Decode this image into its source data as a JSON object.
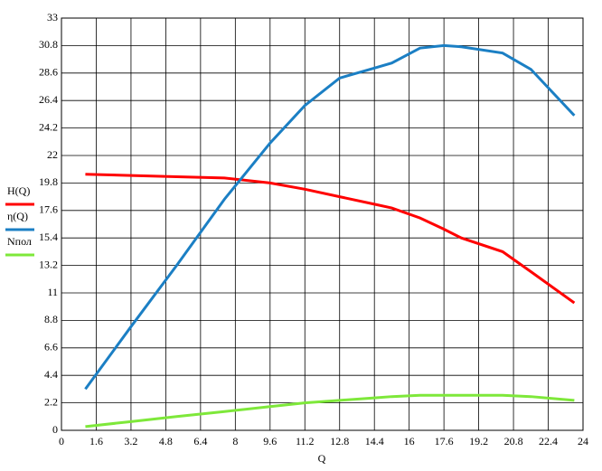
{
  "chart_data": {
    "type": "line",
    "x_label": "Q",
    "x": [
      1.1,
      3.2,
      5.3,
      7.5,
      9.6,
      11.2,
      12.8,
      14.4,
      15.2,
      16.5,
      17.6,
      18.4,
      20.3,
      21.6,
      23.6
    ],
    "series": [
      {
        "name": "H(Q)",
        "color": "#ff0000",
        "values": [
          20.5,
          20.4,
          20.3,
          20.2,
          19.8,
          19.3,
          18.7,
          18.1,
          17.8,
          17.0,
          16.1,
          15.4,
          14.3,
          12.7,
          10.2
        ]
      },
      {
        "name": "η(Q)",
        "color": "#1b7fc4",
        "values": [
          3.3,
          8.3,
          13.2,
          18.5,
          23.0,
          26.0,
          28.2,
          29.0,
          29.4,
          30.6,
          30.8,
          30.7,
          30.2,
          28.9,
          25.2
        ]
      },
      {
        "name": "Nпол",
        "color": "#7ee83a",
        "values": [
          0.3,
          0.7,
          1.1,
          1.5,
          1.9,
          2.2,
          2.4,
          2.6,
          2.7,
          2.8,
          2.8,
          2.8,
          2.8,
          2.7,
          2.4
        ]
      }
    ],
    "xlim": [
      0,
      24
    ],
    "xticks": [
      0,
      1.6,
      3.2,
      4.8,
      6.4,
      8,
      9.6,
      11.2,
      12.8,
      14.4,
      16,
      17.6,
      19.2,
      20.8,
      22.4,
      24
    ],
    "ylim": [
      0,
      33
    ],
    "yticks": [
      0,
      2.2,
      4.4,
      6.6,
      8.8,
      11,
      13.2,
      15.4,
      17.6,
      19.8,
      22,
      24.2,
      26.4,
      28.6,
      30.8,
      33
    ],
    "grid": true,
    "legend": "left"
  }
}
